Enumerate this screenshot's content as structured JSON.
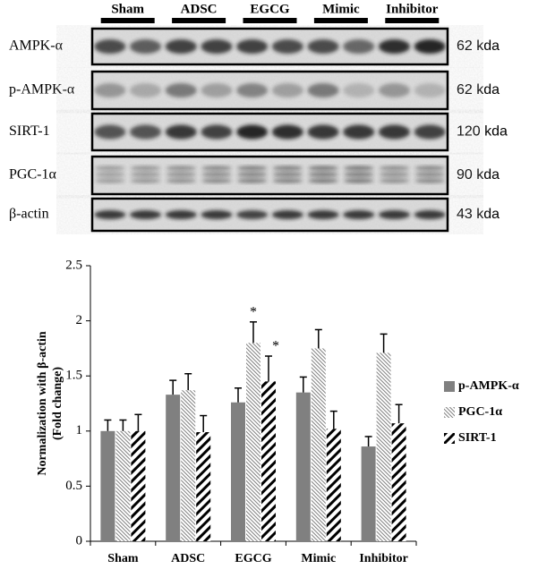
{
  "blot": {
    "groups": [
      "Sham",
      "ADSC",
      "EGCG",
      "Mimic",
      "Inhibitor"
    ],
    "rows": [
      {
        "label": "AMPK-α",
        "size": "62 kda"
      },
      {
        "label": "p-AMPK-α",
        "size": "62 kda"
      },
      {
        "label": "SIRT-1",
        "size": "120 kda"
      },
      {
        "label": "PGC-1α",
        "size": "90 kda"
      },
      {
        "label": "β-actin",
        "size": "43 kda"
      }
    ]
  },
  "chart_data": {
    "type": "bar",
    "ylabel": [
      "Normalization with β-actin",
      "(Fold change)"
    ],
    "categories": [
      "Sham",
      "ADSC",
      "EGCG",
      "Mimic",
      "Inhibitor"
    ],
    "series": [
      {
        "name": "p-AMPK-α",
        "color": "#808080",
        "pattern": "solid",
        "values": [
          1.0,
          1.33,
          1.26,
          1.35,
          0.86
        ],
        "errors": [
          0.1,
          0.13,
          0.13,
          0.14,
          0.09
        ]
      },
      {
        "name": "PGC-1α",
        "color": "#808080",
        "pattern": "hatch-fine",
        "values": [
          1.0,
          1.37,
          1.8,
          1.75,
          1.71
        ],
        "errors": [
          0.1,
          0.15,
          0.19,
          0.17,
          0.17
        ]
      },
      {
        "name": "SIRT-1",
        "color": "#000000",
        "pattern": "hatch-bold",
        "values": [
          1.0,
          0.99,
          1.45,
          1.02,
          1.07
        ],
        "errors": [
          0.15,
          0.15,
          0.23,
          0.16,
          0.17
        ]
      }
    ],
    "annotations": [
      {
        "text": "*",
        "category": "EGCG",
        "series": "PGC-1α"
      },
      {
        "text": "*",
        "category": "EGCG",
        "series": "SIRT-1"
      }
    ],
    "ylim": [
      0,
      2.5
    ],
    "yticks": [
      0,
      0.5,
      1,
      1.5,
      2,
      2.5
    ],
    "grid": false,
    "legend": "right"
  }
}
